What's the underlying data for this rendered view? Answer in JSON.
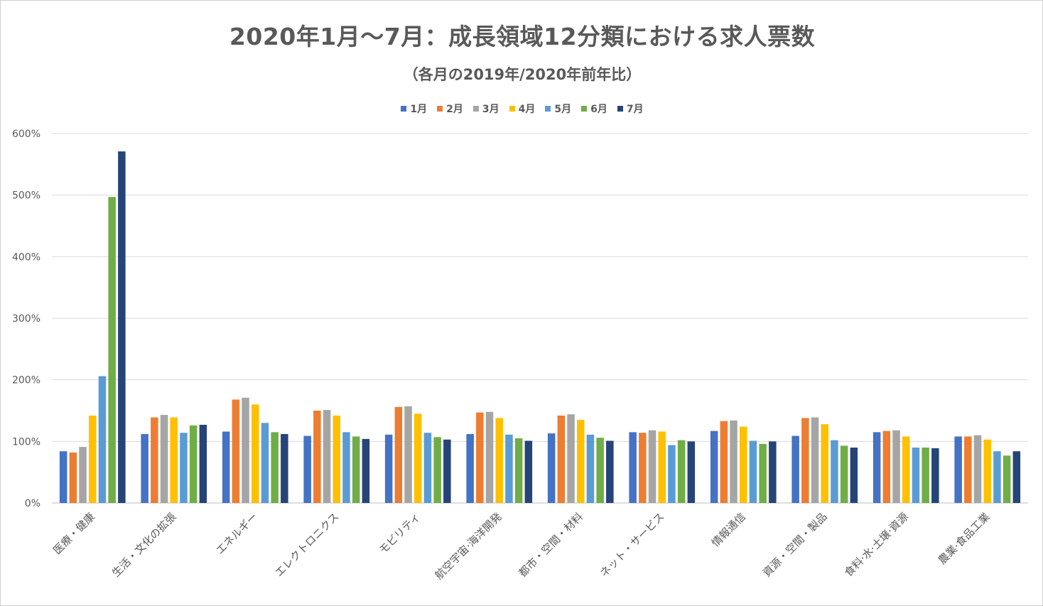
{
  "chart_data": {
    "type": "bar",
    "title": "2020年1月～7月：成長領域12分類における求人票数",
    "subtitle": "（各月の2019年/2020年前年比）",
    "xlabel": "",
    "ylabel": "",
    "ylim": [
      0,
      600
    ],
    "yticks": [
      0,
      100,
      200,
      300,
      400,
      500,
      600
    ],
    "ytick_labels": [
      "0%",
      "100%",
      "200%",
      "300%",
      "400%",
      "500%",
      "600%"
    ],
    "grid": true,
    "legend_position": "top-center",
    "categories": [
      "医療・健康",
      "生活・文化の拡張",
      "エネルギー",
      "エレクトロニクス",
      "モビリティ",
      "航空宇宙·海洋開発",
      "都市・空間・材料",
      "ネット・サービス",
      "情報通信",
      "資源・空間・製品",
      "食料·水·土壌·資源",
      "農業·食品工業"
    ],
    "series": [
      {
        "name": "1月",
        "color": "#4472C4",
        "values": [
          84,
          112,
          116,
          109,
          111,
          112,
          113,
          115,
          117,
          109,
          115,
          108
        ]
      },
      {
        "name": "2月",
        "color": "#ED7D31",
        "values": [
          82,
          139,
          168,
          150,
          156,
          147,
          142,
          114,
          133,
          138,
          117,
          108
        ]
      },
      {
        "name": "3月",
        "color": "#A5A5A5",
        "values": [
          91,
          143,
          171,
          151,
          157,
          148,
          144,
          118,
          134,
          139,
          118,
          110
        ]
      },
      {
        "name": "4月",
        "color": "#FFC000",
        "values": [
          142,
          139,
          160,
          142,
          145,
          138,
          135,
          116,
          124,
          128,
          108,
          103
        ]
      },
      {
        "name": "5月",
        "color": "#5B9BD5",
        "values": [
          206,
          114,
          130,
          115,
          114,
          111,
          111,
          94,
          101,
          102,
          90,
          84
        ]
      },
      {
        "name": "6月",
        "color": "#70AD47",
        "values": [
          497,
          126,
          115,
          108,
          107,
          105,
          106,
          102,
          96,
          93,
          90,
          77
        ]
      },
      {
        "name": "7月",
        "color": "#264478",
        "values": [
          571,
          127,
          112,
          104,
          103,
          101,
          101,
          100,
          100,
          90,
          89,
          84
        ]
      }
    ]
  }
}
